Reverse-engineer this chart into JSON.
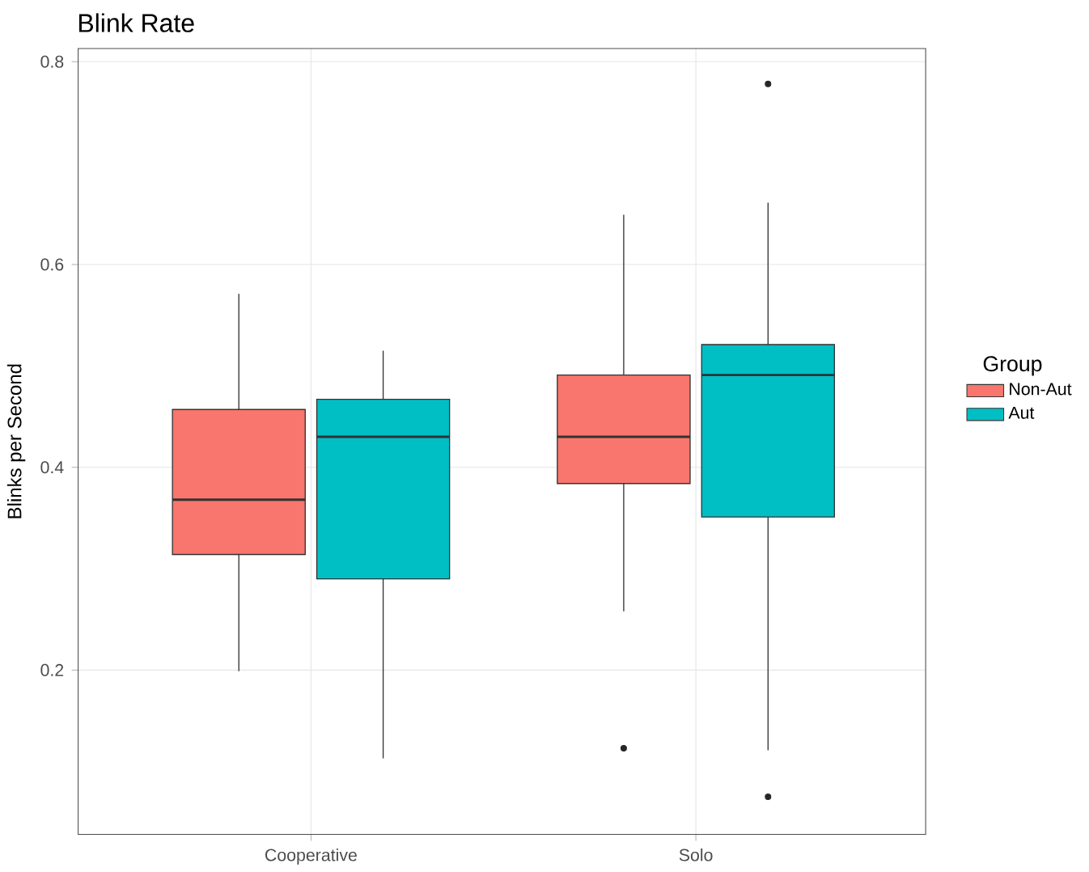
{
  "chart_data": {
    "type": "box",
    "title": "Blink Rate",
    "ylabel": "Blinks per Second",
    "legend_title": "Group",
    "categories": [
      "Cooperative",
      "Solo"
    ],
    "series": [
      {
        "name": "Non-Aut",
        "color": "#f8766d",
        "boxes": [
          {
            "low": 0.199,
            "q1": 0.314,
            "median": 0.368,
            "q3": 0.457,
            "high": 0.571
          },
          {
            "low": 0.258,
            "q1": 0.384,
            "median": 0.43,
            "q3": 0.491,
            "high": 0.649,
            "outliers": [
              0.123
            ]
          }
        ]
      },
      {
        "name": "Aut",
        "color": "#00bfc4",
        "boxes": [
          {
            "low": 0.113,
            "q1": 0.29,
            "median": 0.43,
            "q3": 0.467,
            "high": 0.515
          },
          {
            "low": 0.121,
            "q1": 0.351,
            "median": 0.491,
            "q3": 0.521,
            "high": 0.661,
            "outliers": [
              0.778,
              0.075
            ]
          }
        ]
      }
    ],
    "ylim": [
      0.038,
      0.813
    ],
    "yticks": [
      0.2,
      0.4,
      0.6,
      0.8
    ],
    "grid": true,
    "legend": "right"
  }
}
